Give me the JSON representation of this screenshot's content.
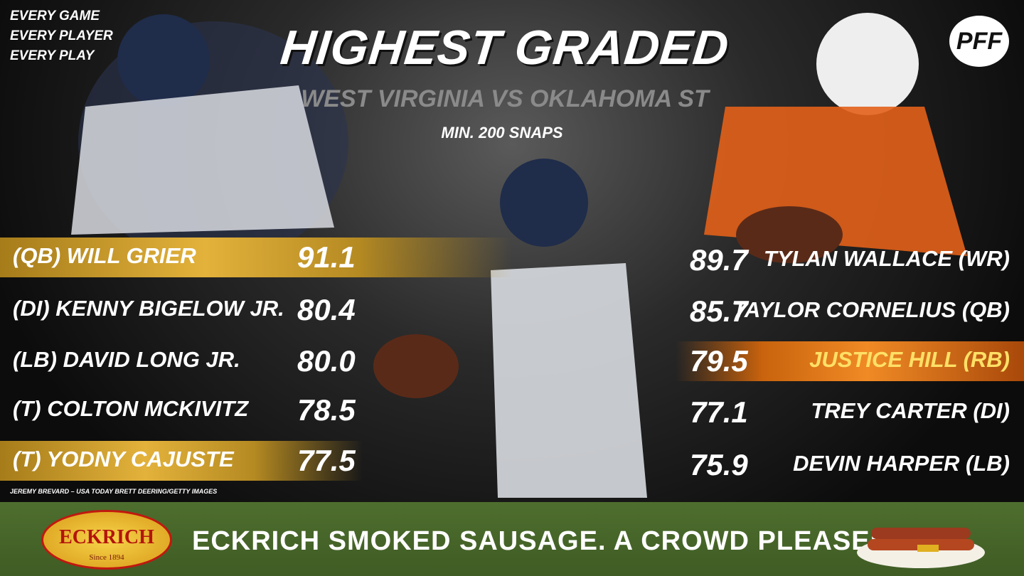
{
  "tagline": [
    "EVERY GAME",
    "EVERY PLAYER",
    "EVERY PLAY"
  ],
  "title": "HIGHEST GRADED",
  "subtitle": "WEST VIRGINIA VS OKLAHOMA ST",
  "note": "MIN. 200 SNAPS",
  "logo": "PFF",
  "left_players": [
    {
      "name": "(QB) WILL GRIER",
      "grade": "91.1"
    },
    {
      "name": "(DI) KENNY BIGELOW JR.",
      "grade": "80.4"
    },
    {
      "name": "(LB) DAVID LONG JR.",
      "grade": "80.0"
    },
    {
      "name": "(T) COLTON MCKIVITZ",
      "grade": "78.5"
    },
    {
      "name": "(T) YODNY CAJUSTE",
      "grade": "77.5"
    }
  ],
  "right_players": [
    {
      "name": "TYLAN WALLACE (WR)",
      "grade": "89.7"
    },
    {
      "name": "TAYLOR CORNELIUS (QB)",
      "grade": "85.7"
    },
    {
      "name": "JUSTICE HILL (RB)",
      "grade": "79.5"
    },
    {
      "name": "TREY CARTER (DI)",
      "grade": "77.1"
    },
    {
      "name": "DEVIN HARPER (LB)",
      "grade": "75.9"
    }
  ],
  "credits": "JEREMY BREVARD – USA TODAY  BRETT DEERING/GETTY IMAGES",
  "ad": {
    "brand": "ECKRICH",
    "since": "Since 1894",
    "text": "ECKRICH SMOKED SAUSAGE. A CROWD PLEASER."
  }
}
